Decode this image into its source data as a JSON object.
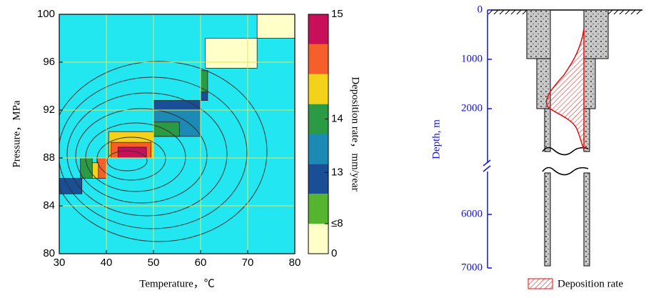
{
  "chart_data": [
    {
      "type": "heatmap",
      "x_label": "Temperature，℃",
      "y_label": "Pressure，MPa",
      "xlim": [
        30,
        80
      ],
      "xticks": [
        30,
        40,
        50,
        60,
        70,
        80
      ],
      "ylim": [
        80,
        100
      ],
      "yticks": [
        80,
        84,
        88,
        92,
        96,
        100
      ],
      "grid": true,
      "grid_color": "#e6e65a",
      "background_color": "#22e6f0",
      "cells": [
        {
          "x": [
            72,
            80
          ],
          "y": [
            98,
            100
          ],
          "value": 4
        },
        {
          "x": [
            61,
            72
          ],
          "y": [
            95.5,
            98
          ],
          "value": 4
        },
        {
          "x": [
            60,
            61.5
          ],
          "y": [
            93.5,
            95.3
          ],
          "value": 14
        },
        {
          "x": [
            60,
            61.5
          ],
          "y": [
            92.8,
            93.5
          ],
          "value": 12.8
        },
        {
          "x": [
            50,
            60
          ],
          "y": [
            92,
            92.8
          ],
          "value": 12.8
        },
        {
          "x": [
            50,
            60
          ],
          "y": [
            89.8,
            92
          ],
          "value": 13.5
        },
        {
          "x": [
            50,
            55.5
          ],
          "y": [
            89.8,
            91
          ],
          "value": 14
        },
        {
          "x": [
            40.5,
            50
          ],
          "y": [
            88,
            90.2
          ],
          "value": 14.3
        },
        {
          "x": [
            41,
            49.5
          ],
          "y": [
            88,
            89.3
          ],
          "value": 14.6
        },
        {
          "x": [
            42.5,
            48.5
          ],
          "y": [
            88,
            88.9
          ],
          "value": 14.9
        },
        {
          "x": [
            38,
            40
          ],
          "y": [
            86.3,
            88
          ],
          "value": 14.6
        },
        {
          "x": [
            37,
            38.3
          ],
          "y": [
            86.3,
            87.6
          ],
          "value": 14.3
        },
        {
          "x": [
            34.5,
            37
          ],
          "y": [
            86.3,
            88
          ],
          "value": 14
        },
        {
          "x": [
            30,
            34.8
          ],
          "y": [
            85,
            86.3
          ],
          "value": 12.8
        }
      ],
      "colorbar": {
        "label": "Deposition rate，mm/year",
        "bounds": [
          0,
          8,
          12.5,
          13.2,
          13.8,
          14.2,
          14.5,
          14.8,
          15
        ],
        "colors": [
          "#ffffc8",
          "#55b52e",
          "#1a4f96",
          "#1c8ab4",
          "#2a9a44",
          "#f5d21a",
          "#f5602a",
          "#c8105a"
        ],
        "ticks": [
          0,
          {
            "value": 8,
            "label": "≤8"
          },
          13,
          14,
          15
        ]
      }
    },
    {
      "type": "well",
      "y_label": "Depth, m",
      "ylim_segments": [
        [
          0,
          3100
        ],
        [
          5200,
          7000
        ]
      ],
      "yticks": [
        0,
        1000,
        2000,
        6000,
        7000
      ],
      "axis_color": "#1010e0",
      "legend_label": "Deposition rate",
      "legend_color": "#e01010"
    }
  ]
}
